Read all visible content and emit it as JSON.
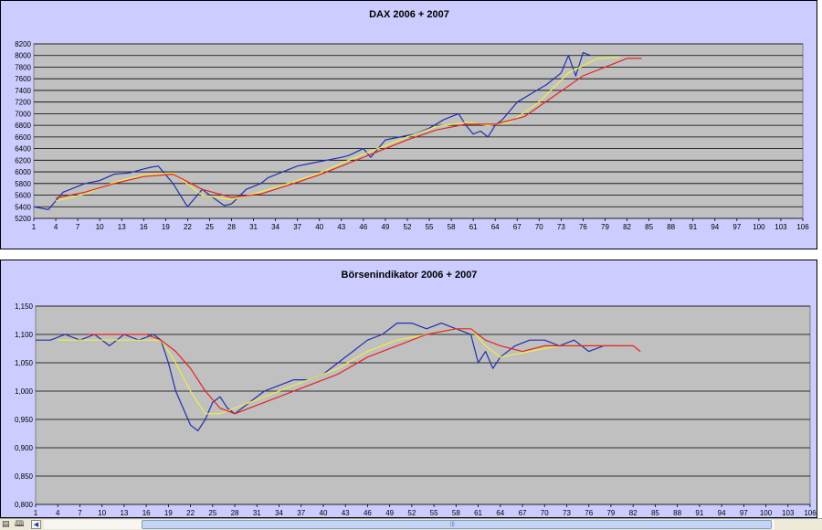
{
  "chart_data": [
    {
      "type": "line",
      "title": "DAX 2006 + 2007",
      "ylim": [
        5200,
        8200
      ],
      "y_ticks": [
        5200,
        5400,
        5600,
        5800,
        6000,
        6200,
        6400,
        6600,
        6800,
        7000,
        7200,
        7400,
        7600,
        7800,
        8000,
        8200
      ],
      "y_tick_labels": [
        "5200",
        "5400",
        "5600",
        "5800",
        "6000",
        "6200",
        "6400",
        "6600",
        "6800",
        "7000",
        "7200",
        "7400",
        "7600",
        "7800",
        "8000",
        "8200"
      ],
      "x_tick_labels": [
        "1",
        "4",
        "7",
        "10",
        "13",
        "16",
        "19",
        "22",
        "25",
        "28",
        "31",
        "34",
        "37",
        "40",
        "43",
        "46",
        "49",
        "52",
        "55",
        "58",
        "61",
        "64",
        "67",
        "70",
        "73",
        "76",
        "79",
        "82",
        "85",
        "88",
        "91",
        "94",
        "97",
        "100",
        "103",
        "106"
      ],
      "x_range": [
        1,
        106
      ],
      "grid": true,
      "series": [
        {
          "color": "#1f2fb0",
          "x": [
            1,
            3,
            5,
            6,
            8,
            10,
            12,
            14,
            16,
            17,
            18,
            20,
            22,
            24,
            25,
            27,
            28,
            30,
            32,
            33,
            35,
            37,
            39,
            41,
            43,
            44,
            46,
            47,
            49,
            51,
            53,
            55,
            57,
            59,
            60,
            61,
            62,
            63,
            64,
            65,
            67,
            69,
            71,
            72,
            73,
            74,
            75,
            76,
            77
          ],
          "values": [
            5400,
            5350,
            5650,
            5700,
            5800,
            5850,
            5960,
            5980,
            6050,
            6080,
            6100,
            5800,
            5400,
            5700,
            5600,
            5420,
            5450,
            5700,
            5800,
            5900,
            6000,
            6100,
            6150,
            6200,
            6250,
            6280,
            6400,
            6250,
            6550,
            6600,
            6650,
            6750,
            6900,
            7000,
            6800,
            6650,
            6700,
            6600,
            6800,
            6900,
            7200,
            7350,
            7500,
            7600,
            7700,
            8000,
            7650,
            8050,
            8000
          ]
        },
        {
          "color": "#eeee44",
          "x": [
            4,
            8,
            12,
            16,
            20,
            24,
            28,
            32,
            36,
            40,
            44,
            48,
            52,
            56,
            60,
            63,
            66,
            70,
            74,
            78,
            81
          ],
          "values": [
            5500,
            5620,
            5820,
            5950,
            5980,
            5600,
            5520,
            5660,
            5810,
            5980,
            6200,
            6400,
            6600,
            6780,
            6850,
            6800,
            6850,
            7200,
            7700,
            7950,
            7970
          ]
        },
        {
          "color": "#e82020",
          "x": [
            4,
            8,
            12,
            16,
            20,
            24,
            28,
            32,
            36,
            40,
            44,
            48,
            52,
            56,
            60,
            64,
            68,
            72,
            76,
            80,
            82,
            84
          ],
          "values": [
            5550,
            5650,
            5800,
            5920,
            5960,
            5700,
            5560,
            5620,
            5780,
            5950,
            6150,
            6350,
            6550,
            6720,
            6820,
            6820,
            6950,
            7300,
            7650,
            7850,
            7950,
            7950
          ]
        }
      ]
    },
    {
      "type": "line",
      "title": "Börsenindikator 2006 + 2007",
      "ylim": [
        0.8,
        1.15
      ],
      "y_ticks": [
        0.8,
        0.85,
        0.9,
        0.95,
        1.0,
        1.05,
        1.1,
        1.15
      ],
      "y_tick_labels": [
        "0,800",
        "0,850",
        "0,900",
        "0,950",
        "1,000",
        "1,050",
        "1,100",
        "1,150"
      ],
      "x_tick_labels": [
        "1",
        "4",
        "7",
        "10",
        "13",
        "16",
        "19",
        "22",
        "25",
        "28",
        "31",
        "34",
        "37",
        "40",
        "43",
        "46",
        "49",
        "52",
        "55",
        "58",
        "61",
        "64",
        "67",
        "70",
        "73",
        "76",
        "79",
        "82",
        "85",
        "88",
        "91",
        "94",
        "97",
        "100",
        "103",
        "106"
      ],
      "x_range": [
        1,
        106
      ],
      "grid": true,
      "series": [
        {
          "color": "#1f2fb0",
          "x": [
            1,
            3,
            5,
            7,
            9,
            11,
            13,
            15,
            17,
            18,
            19,
            20,
            21,
            22,
            23,
            24,
            25,
            26,
            27,
            28,
            30,
            32,
            34,
            36,
            38,
            40,
            42,
            44,
            46,
            48,
            50,
            52,
            54,
            56,
            58,
            60,
            61,
            62,
            63,
            64,
            66,
            68,
            70,
            72,
            74,
            76,
            78,
            80
          ],
          "values": [
            1.09,
            1.09,
            1.1,
            1.09,
            1.1,
            1.08,
            1.1,
            1.09,
            1.1,
            1.09,
            1.05,
            1.0,
            0.97,
            0.94,
            0.93,
            0.95,
            0.98,
            0.99,
            0.97,
            0.96,
            0.98,
            1.0,
            1.01,
            1.02,
            1.02,
            1.03,
            1.05,
            1.07,
            1.09,
            1.1,
            1.12,
            1.12,
            1.11,
            1.12,
            1.11,
            1.1,
            1.05,
            1.07,
            1.04,
            1.06,
            1.08,
            1.09,
            1.09,
            1.08,
            1.09,
            1.07,
            1.08,
            1.08
          ]
        },
        {
          "color": "#eeee44",
          "x": [
            4,
            8,
            12,
            16,
            18,
            20,
            22,
            24,
            26,
            28,
            30,
            34,
            38,
            42,
            46,
            50,
            54,
            58,
            60,
            62,
            64,
            68,
            72,
            76,
            80
          ],
          "values": [
            1.09,
            1.09,
            1.09,
            1.09,
            1.09,
            1.05,
            1.0,
            0.96,
            0.96,
            0.97,
            0.98,
            1.0,
            1.02,
            1.04,
            1.07,
            1.09,
            1.1,
            1.11,
            1.11,
            1.08,
            1.06,
            1.07,
            1.08,
            1.08,
            1.08
          ]
        },
        {
          "color": "#e82020",
          "x": [
            8,
            12,
            16,
            18,
            20,
            22,
            24,
            26,
            28,
            30,
            34,
            38,
            42,
            46,
            50,
            54,
            58,
            60,
            62,
            64,
            67,
            70,
            74,
            78,
            82,
            83
          ],
          "values": [
            1.1,
            1.1,
            1.1,
            1.09,
            1.07,
            1.04,
            1.0,
            0.97,
            0.96,
            0.97,
            0.99,
            1.01,
            1.03,
            1.06,
            1.08,
            1.1,
            1.11,
            1.11,
            1.09,
            1.08,
            1.07,
            1.08,
            1.08,
            1.08,
            1.08,
            1.07
          ]
        }
      ]
    }
  ],
  "statusbar": {
    "icons": [
      "sheet-icon",
      "book-icon"
    ],
    "arrow_left": "◀",
    "grip": "|||"
  }
}
